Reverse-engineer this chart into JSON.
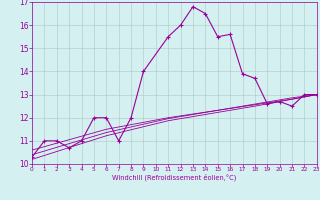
{
  "xlabel": "Windchill (Refroidissement éolien,°C)",
  "x_data": [
    0,
    1,
    2,
    3,
    4,
    5,
    6,
    7,
    8,
    9,
    10,
    11,
    12,
    13,
    14,
    15,
    16,
    17,
    18,
    19,
    20,
    21,
    22,
    23
  ],
  "y_main": [
    10.3,
    11.0,
    11.0,
    10.7,
    11.0,
    12.0,
    12.0,
    11.0,
    12.0,
    14.0,
    null,
    15.5,
    16.0,
    16.8,
    16.5,
    15.5,
    15.6,
    13.9,
    13.7,
    12.6,
    12.7,
    12.5,
    13.0,
    13.0
  ],
  "y_trend1": [
    10.6,
    10.75,
    10.9,
    11.05,
    11.2,
    11.35,
    11.5,
    11.6,
    11.7,
    11.8,
    11.9,
    12.0,
    12.08,
    12.16,
    12.24,
    12.32,
    12.4,
    12.48,
    12.56,
    12.64,
    12.72,
    12.8,
    12.9,
    13.0
  ],
  "y_trend2": [
    10.4,
    10.56,
    10.72,
    10.88,
    11.04,
    11.2,
    11.36,
    11.48,
    11.6,
    11.72,
    11.84,
    11.96,
    12.05,
    12.14,
    12.23,
    12.32,
    12.41,
    12.5,
    12.59,
    12.68,
    12.77,
    12.86,
    12.93,
    13.0
  ],
  "y_trend3": [
    10.2,
    10.37,
    10.54,
    10.71,
    10.88,
    11.05,
    11.22,
    11.35,
    11.48,
    11.61,
    11.74,
    11.87,
    11.96,
    12.05,
    12.14,
    12.23,
    12.32,
    12.41,
    12.5,
    12.6,
    12.7,
    12.8,
    12.9,
    13.0
  ],
  "line_color": "#990099",
  "bg_color": "#d4f0f0",
  "grid_color": "#b0c8c8",
  "ylim": [
    10,
    17
  ],
  "xlim": [
    0,
    23
  ],
  "yticks": [
    10,
    11,
    12,
    13,
    14,
    15,
    16,
    17
  ],
  "xticks": [
    0,
    1,
    2,
    3,
    4,
    5,
    6,
    7,
    8,
    9,
    10,
    11,
    12,
    13,
    14,
    15,
    16,
    17,
    18,
    19,
    20,
    21,
    22,
    23
  ]
}
